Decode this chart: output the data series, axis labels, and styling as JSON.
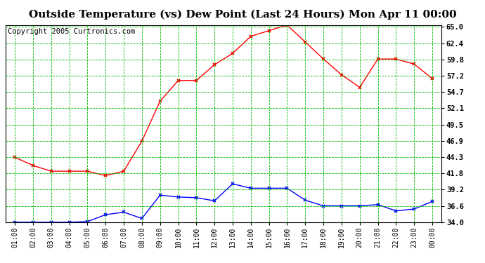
{
  "title": "Outside Temperature (vs) Dew Point (Last 24 Hours) Mon Apr 11 00:00",
  "copyright": "Copyright 2005 Curtronics.com",
  "x_labels": [
    "01:00",
    "02:00",
    "03:00",
    "04:00",
    "05:00",
    "06:00",
    "07:00",
    "08:00",
    "09:00",
    "10:00",
    "11:00",
    "12:00",
    "13:00",
    "14:00",
    "15:00",
    "16:00",
    "17:00",
    "18:00",
    "19:00",
    "20:00",
    "21:00",
    "22:00",
    "23:00",
    "00:00"
  ],
  "temp_values": [
    44.3,
    43.0,
    42.1,
    42.1,
    42.1,
    41.4,
    42.1,
    46.9,
    53.2,
    56.5,
    56.5,
    59.0,
    60.8,
    63.5,
    64.4,
    65.3,
    62.6,
    59.9,
    57.4,
    55.4,
    59.9,
    59.9,
    59.1,
    56.8
  ],
  "dew_values": [
    34.0,
    34.0,
    34.0,
    34.0,
    34.1,
    35.2,
    35.6,
    34.6,
    38.3,
    38.0,
    37.9,
    37.4,
    40.1,
    39.4,
    39.4,
    39.4,
    37.5,
    36.6,
    36.6,
    36.6,
    36.8,
    35.8,
    36.1,
    37.3
  ],
  "temp_color": "#ff0000",
  "dew_color": "#0000ff",
  "bg_color": "#ffffff",
  "plot_bg_color": "#ffffff",
  "grid_color": "#00bb00",
  "ylim": [
    34.0,
    65.3
  ],
  "yticks": [
    34.0,
    36.6,
    39.2,
    41.8,
    44.3,
    46.9,
    49.5,
    52.1,
    54.7,
    57.2,
    59.8,
    62.4,
    65.0
  ],
  "title_fontsize": 11,
  "copyright_fontsize": 7.5
}
